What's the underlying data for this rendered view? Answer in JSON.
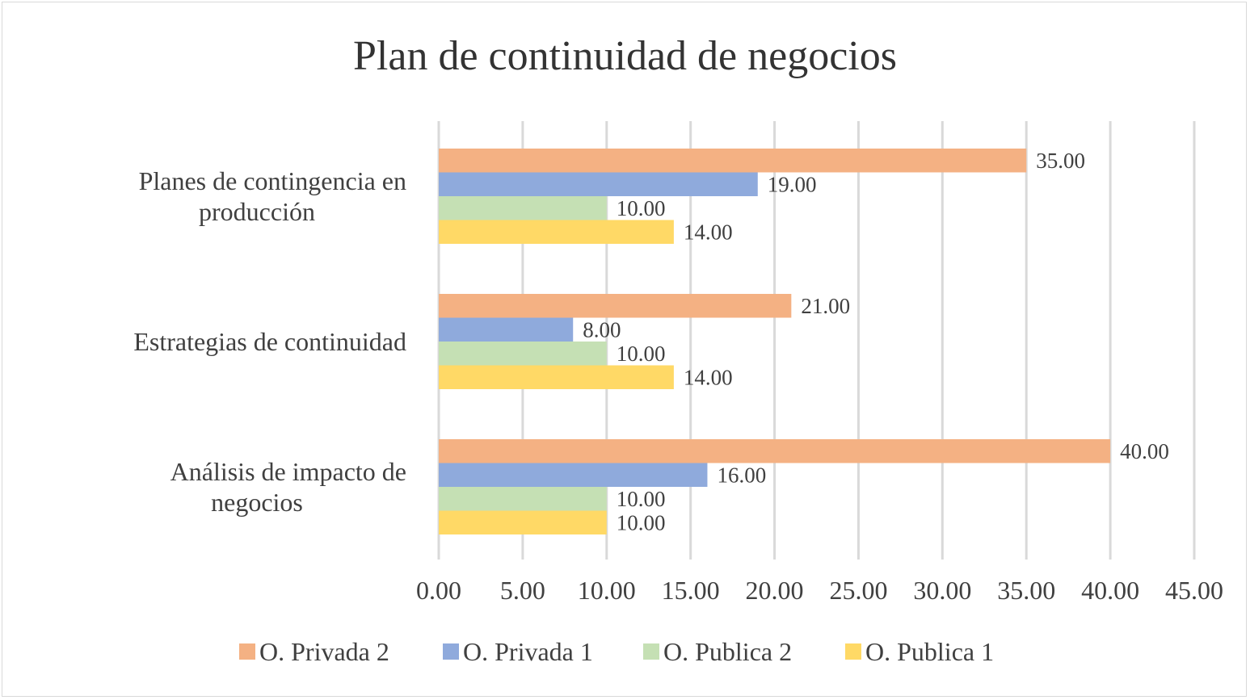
{
  "chart_data": {
    "type": "bar",
    "orientation": "horizontal",
    "title": "Plan de continuidad de negocios",
    "categories": [
      "Planes de contingencia en producción",
      "Estrategias de continuidad",
      "Análisis de impacto de negocios"
    ],
    "series": [
      {
        "name": "O. Privada 2",
        "color": "#F4B183",
        "values": [
          35,
          21,
          40
        ]
      },
      {
        "name": "O. Privada 1",
        "color": "#8FAADC",
        "values": [
          19,
          8,
          16
        ]
      },
      {
        "name": "O. Publica 2",
        "color": "#C5E0B4",
        "values": [
          10,
          10,
          10
        ]
      },
      {
        "name": "O. Publica 1",
        "color": "#FFD966",
        "values": [
          14,
          14,
          10
        ]
      }
    ],
    "xlim": [
      0,
      45
    ],
    "xticks": [
      "0.00",
      "5.00",
      "10.00",
      "15.00",
      "20.00",
      "25.00",
      "30.00",
      "35.00",
      "40.00",
      "45.00"
    ],
    "grid": true,
    "legend": "bottom",
    "data_labels": true
  }
}
